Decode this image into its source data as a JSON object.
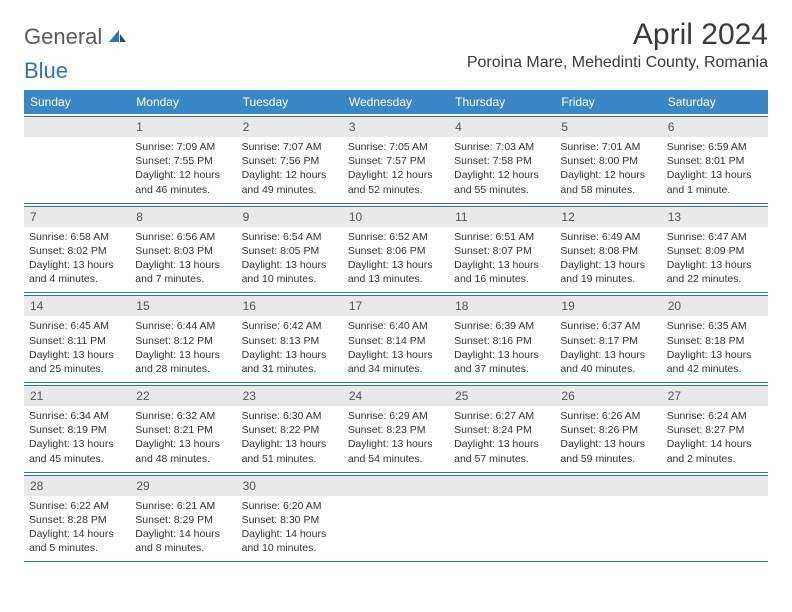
{
  "logo": {
    "part1": "General",
    "part2": "Blue"
  },
  "title": "April 2024",
  "location": "Poroina Mare, Mehedinti County, Romania",
  "day_names": [
    "Sunday",
    "Monday",
    "Tuesday",
    "Wednesday",
    "Thursday",
    "Friday",
    "Saturday"
  ],
  "colors": {
    "header_bg": "#3a87c7",
    "header_fg": "#ffffff",
    "rule": "#2e74b5",
    "daynum_bg": "#e9e9e9",
    "daynum_fg": "#555555",
    "text": "#333333",
    "logo_gray": "#5a5a5a",
    "logo_blue": "#2e74b5"
  },
  "weeks": [
    [
      {
        "n": "",
        "sr": "",
        "ss": "",
        "dl": ""
      },
      {
        "n": "1",
        "sr": "Sunrise: 7:09 AM",
        "ss": "Sunset: 7:55 PM",
        "dl": "Daylight: 12 hours and 46 minutes."
      },
      {
        "n": "2",
        "sr": "Sunrise: 7:07 AM",
        "ss": "Sunset: 7:56 PM",
        "dl": "Daylight: 12 hours and 49 minutes."
      },
      {
        "n": "3",
        "sr": "Sunrise: 7:05 AM",
        "ss": "Sunset: 7:57 PM",
        "dl": "Daylight: 12 hours and 52 minutes."
      },
      {
        "n": "4",
        "sr": "Sunrise: 7:03 AM",
        "ss": "Sunset: 7:58 PM",
        "dl": "Daylight: 12 hours and 55 minutes."
      },
      {
        "n": "5",
        "sr": "Sunrise: 7:01 AM",
        "ss": "Sunset: 8:00 PM",
        "dl": "Daylight: 12 hours and 58 minutes."
      },
      {
        "n": "6",
        "sr": "Sunrise: 6:59 AM",
        "ss": "Sunset: 8:01 PM",
        "dl": "Daylight: 13 hours and 1 minute."
      }
    ],
    [
      {
        "n": "7",
        "sr": "Sunrise: 6:58 AM",
        "ss": "Sunset: 8:02 PM",
        "dl": "Daylight: 13 hours and 4 minutes."
      },
      {
        "n": "8",
        "sr": "Sunrise: 6:56 AM",
        "ss": "Sunset: 8:03 PM",
        "dl": "Daylight: 13 hours and 7 minutes."
      },
      {
        "n": "9",
        "sr": "Sunrise: 6:54 AM",
        "ss": "Sunset: 8:05 PM",
        "dl": "Daylight: 13 hours and 10 minutes."
      },
      {
        "n": "10",
        "sr": "Sunrise: 6:52 AM",
        "ss": "Sunset: 8:06 PM",
        "dl": "Daylight: 13 hours and 13 minutes."
      },
      {
        "n": "11",
        "sr": "Sunrise: 6:51 AM",
        "ss": "Sunset: 8:07 PM",
        "dl": "Daylight: 13 hours and 16 minutes."
      },
      {
        "n": "12",
        "sr": "Sunrise: 6:49 AM",
        "ss": "Sunset: 8:08 PM",
        "dl": "Daylight: 13 hours and 19 minutes."
      },
      {
        "n": "13",
        "sr": "Sunrise: 6:47 AM",
        "ss": "Sunset: 8:09 PM",
        "dl": "Daylight: 13 hours and 22 minutes."
      }
    ],
    [
      {
        "n": "14",
        "sr": "Sunrise: 6:45 AM",
        "ss": "Sunset: 8:11 PM",
        "dl": "Daylight: 13 hours and 25 minutes."
      },
      {
        "n": "15",
        "sr": "Sunrise: 6:44 AM",
        "ss": "Sunset: 8:12 PM",
        "dl": "Daylight: 13 hours and 28 minutes."
      },
      {
        "n": "16",
        "sr": "Sunrise: 6:42 AM",
        "ss": "Sunset: 8:13 PM",
        "dl": "Daylight: 13 hours and 31 minutes."
      },
      {
        "n": "17",
        "sr": "Sunrise: 6:40 AM",
        "ss": "Sunset: 8:14 PM",
        "dl": "Daylight: 13 hours and 34 minutes."
      },
      {
        "n": "18",
        "sr": "Sunrise: 6:39 AM",
        "ss": "Sunset: 8:16 PM",
        "dl": "Daylight: 13 hours and 37 minutes."
      },
      {
        "n": "19",
        "sr": "Sunrise: 6:37 AM",
        "ss": "Sunset: 8:17 PM",
        "dl": "Daylight: 13 hours and 40 minutes."
      },
      {
        "n": "20",
        "sr": "Sunrise: 6:35 AM",
        "ss": "Sunset: 8:18 PM",
        "dl": "Daylight: 13 hours and 42 minutes."
      }
    ],
    [
      {
        "n": "21",
        "sr": "Sunrise: 6:34 AM",
        "ss": "Sunset: 8:19 PM",
        "dl": "Daylight: 13 hours and 45 minutes."
      },
      {
        "n": "22",
        "sr": "Sunrise: 6:32 AM",
        "ss": "Sunset: 8:21 PM",
        "dl": "Daylight: 13 hours and 48 minutes."
      },
      {
        "n": "23",
        "sr": "Sunrise: 6:30 AM",
        "ss": "Sunset: 8:22 PM",
        "dl": "Daylight: 13 hours and 51 minutes."
      },
      {
        "n": "24",
        "sr": "Sunrise: 6:29 AM",
        "ss": "Sunset: 8:23 PM",
        "dl": "Daylight: 13 hours and 54 minutes."
      },
      {
        "n": "25",
        "sr": "Sunrise: 6:27 AM",
        "ss": "Sunset: 8:24 PM",
        "dl": "Daylight: 13 hours and 57 minutes."
      },
      {
        "n": "26",
        "sr": "Sunrise: 6:26 AM",
        "ss": "Sunset: 8:26 PM",
        "dl": "Daylight: 13 hours and 59 minutes."
      },
      {
        "n": "27",
        "sr": "Sunrise: 6:24 AM",
        "ss": "Sunset: 8:27 PM",
        "dl": "Daylight: 14 hours and 2 minutes."
      }
    ],
    [
      {
        "n": "28",
        "sr": "Sunrise: 6:22 AM",
        "ss": "Sunset: 8:28 PM",
        "dl": "Daylight: 14 hours and 5 minutes."
      },
      {
        "n": "29",
        "sr": "Sunrise: 6:21 AM",
        "ss": "Sunset: 8:29 PM",
        "dl": "Daylight: 14 hours and 8 minutes."
      },
      {
        "n": "30",
        "sr": "Sunrise: 6:20 AM",
        "ss": "Sunset: 8:30 PM",
        "dl": "Daylight: 14 hours and 10 minutes."
      },
      {
        "n": "",
        "sr": "",
        "ss": "",
        "dl": ""
      },
      {
        "n": "",
        "sr": "",
        "ss": "",
        "dl": ""
      },
      {
        "n": "",
        "sr": "",
        "ss": "",
        "dl": ""
      },
      {
        "n": "",
        "sr": "",
        "ss": "",
        "dl": ""
      }
    ]
  ]
}
